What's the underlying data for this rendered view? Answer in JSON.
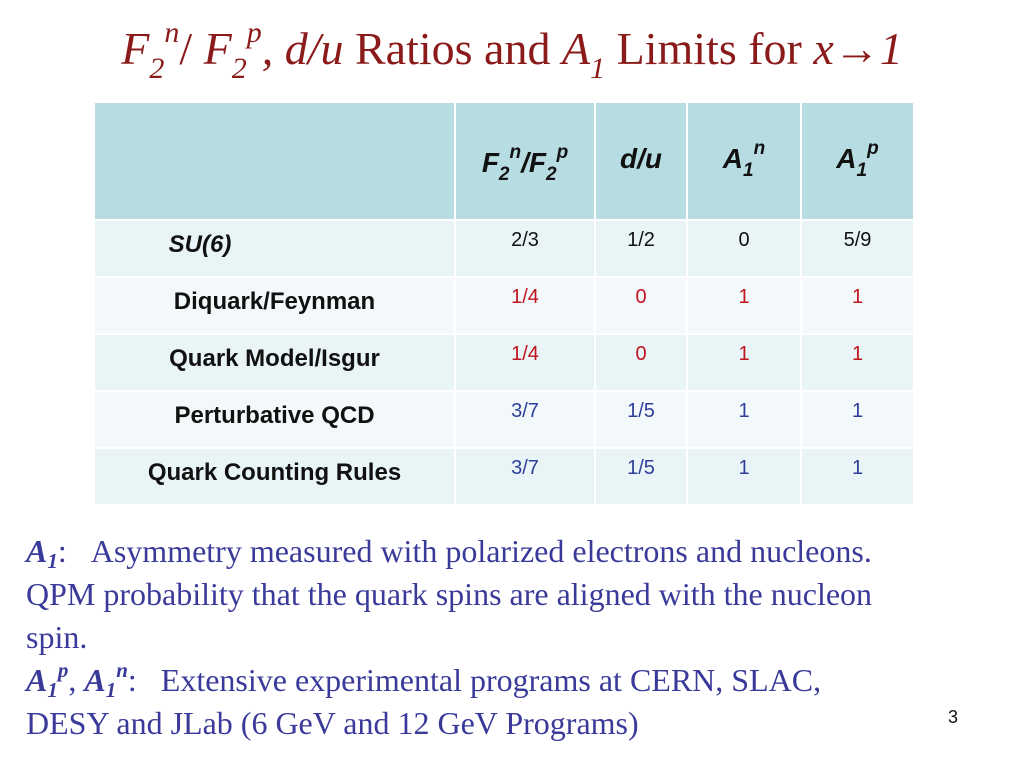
{
  "title": {
    "f": "F",
    "sub2a": "2",
    "sup_n": "n",
    "slash": "/ ",
    "f2": "F",
    "sub2b": "2",
    "sup_p": "p",
    "comma_du": ", d/u",
    "mid": " Ratios and ",
    "a": "A",
    "sub1": "1",
    "limits": " Limits for ",
    "x": "x→1"
  },
  "table": {
    "headers": {
      "f": "F",
      "sub_2a": "2",
      "sup_n": "n",
      "slash": "/F",
      "sub_2b": "2",
      "sup_p": "p",
      "du": "d/u",
      "a_n": "A",
      "a_n_sub": "1",
      "a_n_sup": "n",
      "a_p": "A",
      "a_p_sub": "1",
      "a_p_sup": "p"
    },
    "rows": [
      {
        "label": "SU(6)",
        "f2n_f2p": "2/3",
        "du": "1/2",
        "a1n": "0",
        "a1p": "5/9"
      },
      {
        "label": "Diquark/Feynman",
        "f2n_f2p": "1/4",
        "du": "0",
        "a1n": "1",
        "a1p": "1"
      },
      {
        "label": "Quark Model/Isgur",
        "f2n_f2p": "1/4",
        "du": "0",
        "a1n": "1",
        "a1p": "1"
      },
      {
        "label": "Perturbative QCD",
        "f2n_f2p": "3/7",
        "du": "1/5",
        "a1n": "1",
        "a1p": "1"
      },
      {
        "label": "Quark Counting Rules",
        "f2n_f2p": "3/7",
        "du": "1/5",
        "a1n": "1",
        "a1p": "1"
      }
    ]
  },
  "notes": {
    "a1_sym": "A",
    "a1_sub": "1",
    "a1_colon": ":",
    "line1_text": "Asymmetry measured with polarized electrons and nucleons.",
    "line2_text": "QPM probability that the quark spins are aligned with the nucleon",
    "line3_text": "spin.",
    "ap_sym": "A",
    "ap_sub": "1",
    "ap_sup": "p",
    "comma": ", ",
    "an_sym": "A",
    "an_sub": "1",
    "an_sup": "n",
    "colon2": ":",
    "line4_text": "Extensive experimental programs at CERN, SLAC,",
    "line5_text": "DESY and JLab (6 GeV and 12 GeV Programs)"
  },
  "page_number": "3",
  "colors": {
    "title": "#8b1a1a",
    "header_bg": "#b7dde2",
    "row_odd": "#e9f4f6",
    "row_even": "#f3f9fa",
    "black_value": "#111111",
    "red_value": "#c0141e",
    "blue_value": "#2d3f9a",
    "notes_text": "#3a3a9a"
  }
}
